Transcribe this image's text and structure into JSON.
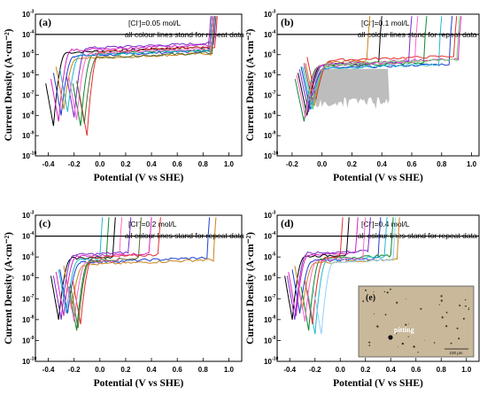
{
  "chart_data": [
    {
      "panel": "(a)",
      "type": "line",
      "xlabel": "Potential (V vs SHE)",
      "ylabel": "Current Density (A·cm⁻²)",
      "xlim": [
        -0.5,
        1.1
      ],
      "ylim_exponent": [
        -10,
        -3
      ],
      "y_scale": "log",
      "x_ticks": [
        "-0.4",
        "-0.2",
        "0.0",
        "0.2",
        "0.4",
        "0.6",
        "0.8",
        "1.0"
      ],
      "annotation_lines": [
        "[Cl⁻]=0.05 mol/L",
        "all colour lines stand for repeat data"
      ],
      "annotation_label": "[Cl",
      "annotation_value": "]=0.05 mol/L",
      "annotation_note": "all colour lines stand for repeat data",
      "reference_current_density": 0.0001,
      "series": [
        {
          "color": "#000000",
          "ecorr": -0.36,
          "jmin": 3e-09,
          "eb": 0.85,
          "ipass": 1.2e-05
        },
        {
          "color": "#1f3fd0",
          "ecorr": -0.3,
          "jmin": 1e-08,
          "eb": 0.86,
          "ipass": 8e-06
        },
        {
          "color": "#d81ec0",
          "ecorr": -0.32,
          "jmin": 5e-09,
          "eb": 0.84,
          "ipass": 1.6e-05
        },
        {
          "color": "#0a8a2a",
          "ecorr": -0.15,
          "jmin": 3e-09,
          "eb": 0.87,
          "ipass": 1e-05
        },
        {
          "color": "#c8841a",
          "ecorr": -0.28,
          "jmin": 2e-08,
          "eb": 0.86,
          "ipass": 6e-06
        },
        {
          "color": "#7a2ac8",
          "ecorr": -0.2,
          "jmin": 8e-09,
          "eb": 0.88,
          "ipass": 2e-05
        },
        {
          "color": "#20b8d0",
          "ecorr": -0.25,
          "jmin": 1.5e-08,
          "eb": 0.85,
          "ipass": 9e-06
        },
        {
          "color": "#e23030",
          "ecorr": -0.1,
          "jmin": 1e-09,
          "eb": 0.89,
          "ipass": 1.4e-05
        },
        {
          "color": "#ff66cc",
          "ecorr": -0.18,
          "jmin": 6e-09,
          "eb": 0.86,
          "ipass": 1.1e-05
        },
        {
          "color": "#556b2f",
          "ecorr": -0.12,
          "jmin": 4e-09,
          "eb": 0.87,
          "ipass": 7e-06
        }
      ]
    },
    {
      "panel": "(b)",
      "type": "line",
      "xlabel": "Potential (V vs SHE)",
      "ylabel": "Current Density (A·cm⁻²)",
      "xlim": [
        -0.3,
        1.05
      ],
      "ylim_exponent": [
        -10,
        -3
      ],
      "y_scale": "log",
      "x_ticks": [
        "-0.2",
        "0.0",
        "0.2",
        "0.4",
        "0.6",
        "0.8",
        "1.0"
      ],
      "annotation_lines": [
        "[Cl⁻]=0.1 mol/L",
        "all colour lines stand for repeat data"
      ],
      "annotation_label": "[Cl",
      "annotation_value": "]=0.1 mol/L",
      "annotation_note": "all colour lines stand for repeat data",
      "reference_current_density": 0.0001,
      "series": [
        {
          "color": "#000000",
          "ecorr": -0.1,
          "jmin": 1e-08,
          "eb": 0.38,
          "ipass": 3e-06
        },
        {
          "color": "#1f3fd0",
          "ecorr": -0.08,
          "jmin": 2e-08,
          "eb": 0.85,
          "ipass": 2e-06
        },
        {
          "color": "#d81ec0",
          "ecorr": -0.06,
          "jmin": 3e-08,
          "eb": 0.91,
          "ipass": 3.5e-06
        },
        {
          "color": "#0a8a2a",
          "ecorr": -0.12,
          "jmin": 5e-09,
          "eb": 0.68,
          "ipass": 2.5e-06
        },
        {
          "color": "#c8841a",
          "ecorr": -0.05,
          "jmin": 3e-08,
          "eb": 0.3,
          "ipass": 4e-06
        },
        {
          "color": "#7a2ac8",
          "ecorr": -0.09,
          "jmin": 1.5e-08,
          "eb": 0.58,
          "ipass": 3e-06
        },
        {
          "color": "#20b8d0",
          "ecorr": -0.07,
          "jmin": 2e-08,
          "eb": 0.78,
          "ipass": 2e-06
        },
        {
          "color": "#e23030",
          "ecorr": -0.04,
          "jmin": 6e-08,
          "eb": 0.88,
          "ipass": 5e-06
        },
        {
          "color": "#ff66cc",
          "ecorr": -0.11,
          "jmin": 8e-09,
          "eb": 0.62,
          "ipass": 2.8e-06
        },
        {
          "color": "#6fd86f",
          "ecorr": -0.06,
          "jmin": 2e-08,
          "eb": 0.9,
          "ipass": 3.2e-06
        }
      ]
    },
    {
      "panel": "(c)",
      "type": "line",
      "xlabel": "Potential (V vs SHE)",
      "ylabel": "Current Density (A·cm⁻²)",
      "xlim": [
        -0.5,
        1.1
      ],
      "ylim_exponent": [
        -10,
        -3
      ],
      "y_scale": "log",
      "x_ticks": [
        "-0.4",
        "-0.2",
        "0.0",
        "0.2",
        "0.4",
        "0.6",
        "0.8",
        "1.0"
      ],
      "annotation_lines": [
        "[Cl⁻]=0.2 mol/L",
        "all colour lines stand for repeat data"
      ],
      "annotation_label": "[Cl",
      "annotation_value": "]=0.2 mol/L",
      "annotation_note": "all colour lines stand for repeat data",
      "reference_current_density": 0.0001,
      "series": [
        {
          "color": "#000000",
          "ecorr": -0.32,
          "jmin": 1e-08,
          "eb": 0.1,
          "ipass": 8e-06
        },
        {
          "color": "#1f3fd0",
          "ecorr": -0.25,
          "jmin": 2e-08,
          "eb": 0.83,
          "ipass": 5e-06
        },
        {
          "color": "#d81ec0",
          "ecorr": -0.28,
          "jmin": 1.5e-08,
          "eb": 0.38,
          "ipass": 1e-05
        },
        {
          "color": "#0a8a2a",
          "ecorr": -0.18,
          "jmin": 3e-09,
          "eb": 0.05,
          "ipass": 6e-06
        },
        {
          "color": "#c8841a",
          "ecorr": -0.22,
          "jmin": 3e-08,
          "eb": 0.88,
          "ipass": 4e-06
        },
        {
          "color": "#7a2ac8",
          "ecorr": -0.3,
          "jmin": 1e-08,
          "eb": 0.22,
          "ipass": 1.2e-05
        },
        {
          "color": "#20b8d0",
          "ecorr": -0.26,
          "jmin": 2e-08,
          "eb": 0.0,
          "ipass": 7e-06
        },
        {
          "color": "#e23030",
          "ecorr": -0.15,
          "jmin": 6e-09,
          "eb": 0.45,
          "ipass": 9e-06
        },
        {
          "color": "#ff66cc",
          "ecorr": -0.2,
          "jmin": 8e-09,
          "eb": 0.15,
          "ipass": 5.5e-06
        },
        {
          "color": "#556b2f",
          "ecorr": -0.17,
          "jmin": 4e-09,
          "eb": 0.3,
          "ipass": 6.5e-06
        }
      ]
    },
    {
      "panel": "(d)",
      "type": "line",
      "xlabel": "Potential (V vs SHE)",
      "ylabel": "Current Density (A·cm⁻²)",
      "xlim": [
        -0.5,
        1.1
      ],
      "ylim_exponent": [
        -10,
        -3
      ],
      "y_scale": "log",
      "x_ticks": [
        "-0.4",
        "-0.2",
        "0.0",
        "0.2",
        "0.4",
        "0.6",
        "0.8",
        "1.0"
      ],
      "annotation_lines": [
        "[Cl⁻]=0.4 mol/L",
        "all colour lines stand for repeat data"
      ],
      "annotation_label": "[Cl",
      "annotation_value": "]=0.4 mol/L",
      "annotation_note": "all colour lines stand for repeat data",
      "reference_current_density": 0.0001,
      "series": [
        {
          "color": "#000000",
          "ecorr": -0.38,
          "jmin": 1e-08,
          "eb": 0.05,
          "ipass": 1e-05
        },
        {
          "color": "#1f3fd0",
          "ecorr": -0.32,
          "jmin": 2e-08,
          "eb": 0.3,
          "ipass": 6e-06
        },
        {
          "color": "#d81ec0",
          "ecorr": -0.35,
          "jmin": 1.5e-08,
          "eb": 0.12,
          "ipass": 1.2e-05
        },
        {
          "color": "#0a8a2a",
          "ecorr": -0.25,
          "jmin": 3e-09,
          "eb": 0.4,
          "ipass": 8e-06
        },
        {
          "color": "#c8841a",
          "ecorr": -0.3,
          "jmin": 3e-08,
          "eb": 0.45,
          "ipass": 5e-06
        },
        {
          "color": "#7a2ac8",
          "ecorr": -0.36,
          "jmin": 1e-08,
          "eb": 0.22,
          "ipass": 1.4e-05
        },
        {
          "color": "#20b8d0",
          "ecorr": -0.2,
          "jmin": 2e-09,
          "eb": 0.35,
          "ipass": 7e-06
        },
        {
          "color": "#e23030",
          "ecorr": -0.22,
          "jmin": 6e-09,
          "eb": 0.0,
          "ipass": 9e-06
        },
        {
          "color": "#ff66cc",
          "ecorr": -0.28,
          "jmin": 8e-09,
          "eb": 0.18,
          "ipass": 6.5e-06
        },
        {
          "color": "#8fd0ff",
          "ecorr": -0.15,
          "jmin": 2e-09,
          "eb": 0.42,
          "ipass": 5.5e-06
        }
      ]
    }
  ],
  "inset": {
    "label": "(e)",
    "caption": "pitting",
    "scale_bar": "100 μm"
  }
}
